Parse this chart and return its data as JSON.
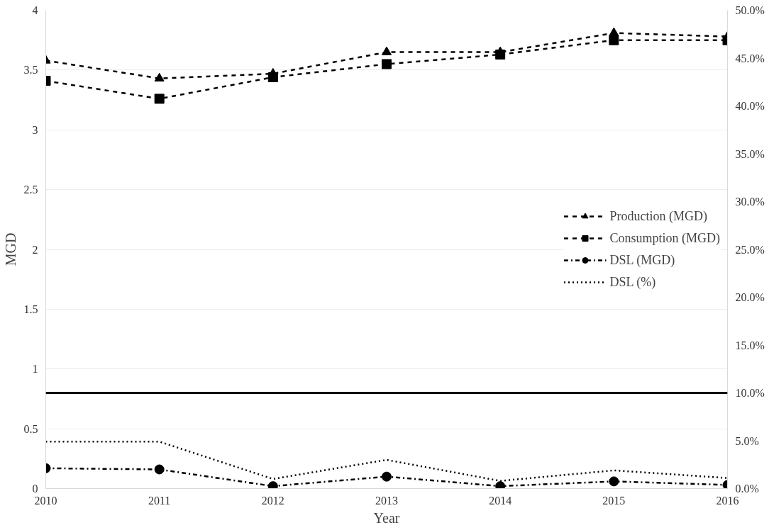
{
  "chart_data": {
    "type": "line",
    "xlabel": "Year",
    "ylabel": "MGD",
    "x": [
      2010,
      2011,
      2012,
      2013,
      2014,
      2015,
      2016
    ],
    "xlim": [
      2010,
      2016
    ],
    "xticks": [
      2010,
      2011,
      2012,
      2013,
      2014,
      2015,
      2016
    ],
    "ylim": [
      0,
      4
    ],
    "yticks": [
      0,
      0.5,
      1,
      1.5,
      2,
      2.5,
      3,
      3.5,
      4
    ],
    "y2lim": [
      0,
      50
    ],
    "y2ticks": [
      {
        "value": 0,
        "label": "0.0%"
      },
      {
        "value": 5,
        "label": "5.0%"
      },
      {
        "value": 10,
        "label": "10.0%"
      },
      {
        "value": 15,
        "label": "15.0%"
      },
      {
        "value": 20,
        "label": "20.0%"
      },
      {
        "value": 25,
        "label": "25.0%"
      },
      {
        "value": 30,
        "label": "30.0%"
      },
      {
        "value": 35,
        "label": "35.0%"
      },
      {
        "value": 40,
        "label": "40.0%"
      },
      {
        "value": 45,
        "label": "45.0%"
      },
      {
        "value": 50,
        "label": "50.0%"
      }
    ],
    "grid": "y",
    "legend": "right",
    "ref_lines": [
      {
        "axis": "y2",
        "value": 10,
        "color": "#000000"
      }
    ],
    "series": [
      {
        "name": "Production (MGD)",
        "color": "#000000",
        "marker": "triangle",
        "line_style": "dashed",
        "values": [
          3.58,
          3.43,
          3.47,
          3.65,
          3.65,
          3.81,
          3.78
        ]
      },
      {
        "name": "Consumption (MGD)",
        "color": "#000000",
        "marker": "square",
        "line_style": "dashed",
        "values": [
          3.41,
          3.26,
          3.44,
          3.55,
          3.63,
          3.75,
          3.75
        ]
      },
      {
        "name": "DSL (MGD)",
        "color": "#000000",
        "marker": "circle",
        "line_style": "dashdot",
        "values": [
          0.17,
          0.16,
          0.02,
          0.1,
          0.02,
          0.06,
          0.03
        ]
      },
      {
        "name": "DSL (%)",
        "color": "#000000",
        "marker": "none",
        "line_style": "dotted",
        "axis": "y2",
        "values": [
          4.9,
          4.9,
          1.0,
          3.0,
          0.8,
          1.9,
          1.1
        ]
      }
    ]
  }
}
